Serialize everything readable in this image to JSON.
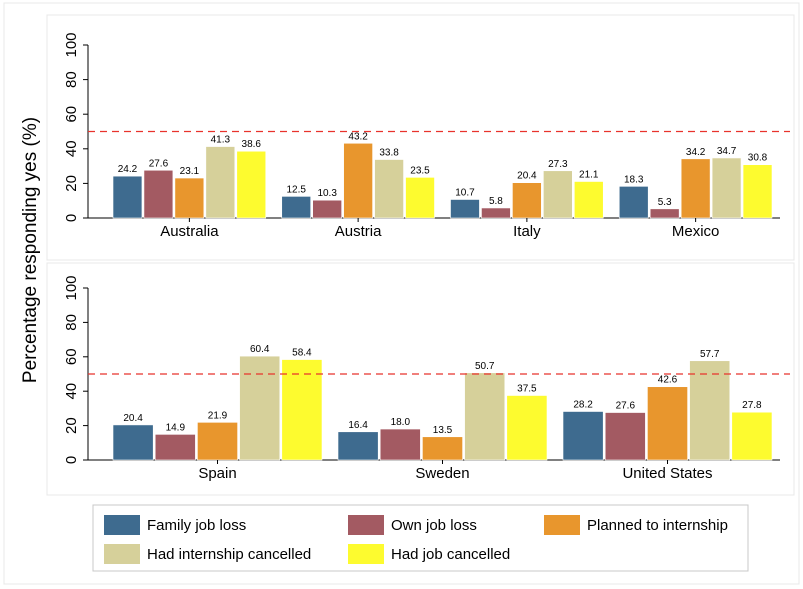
{
  "chart_data": {
    "type": "bar",
    "ylabel": "Percentage responding yes (%)",
    "ylim": [
      0,
      100
    ],
    "yticks": [
      0,
      20,
      40,
      60,
      80,
      100
    ],
    "reference_line": 50,
    "series": [
      {
        "name": "Family job loss",
        "color": "#3e6b8f"
      },
      {
        "name": "Own job loss",
        "color": "#a35a62"
      },
      {
        "name": "Planned to internship",
        "color": "#e8962d"
      },
      {
        "name": "Had internship cancelled",
        "color": "#d6d09a"
      },
      {
        "name": "Had job cancelled",
        "color": "#fdfb2f"
      }
    ],
    "panels": [
      {
        "categories": [
          "Australia",
          "Austria",
          "Italy",
          "Mexico"
        ],
        "values": [
          [
            24.2,
            27.6,
            23.1,
            41.3,
            38.6
          ],
          [
            12.5,
            10.3,
            43.2,
            33.8,
            23.5
          ],
          [
            10.7,
            5.8,
            20.4,
            27.3,
            21.1
          ],
          [
            18.3,
            5.3,
            34.2,
            34.7,
            30.8
          ]
        ],
        "labels": [
          [
            "24.2",
            "27.6",
            "23.1",
            "41.3",
            "38.6"
          ],
          [
            "12.5",
            "10.3",
            "43.2",
            "33.8",
            "23.5"
          ],
          [
            "10.7",
            "5.8",
            "20.4",
            "27.3",
            "21.1"
          ],
          [
            "18.3",
            "5.3",
            "34.2",
            "34.7",
            "30.8"
          ]
        ]
      },
      {
        "categories": [
          "Spain",
          "Sweden",
          "United States"
        ],
        "values": [
          [
            20.4,
            14.9,
            21.9,
            60.4,
            58.4
          ],
          [
            16.4,
            18.0,
            13.5,
            50.7,
            37.5
          ],
          [
            28.2,
            27.6,
            42.6,
            57.7,
            27.8
          ]
        ],
        "labels": [
          [
            "20.4",
            "14.9",
            "21.9",
            "60.4",
            "58.4"
          ],
          [
            "16.4",
            "18.0",
            "13.5",
            "50.7",
            "37.5"
          ],
          [
            "28.2",
            "27.6",
            "42.6",
            "57.7",
            "27.8"
          ]
        ]
      }
    ],
    "legend": {
      "placement": "bottom",
      "columns": 3
    }
  }
}
